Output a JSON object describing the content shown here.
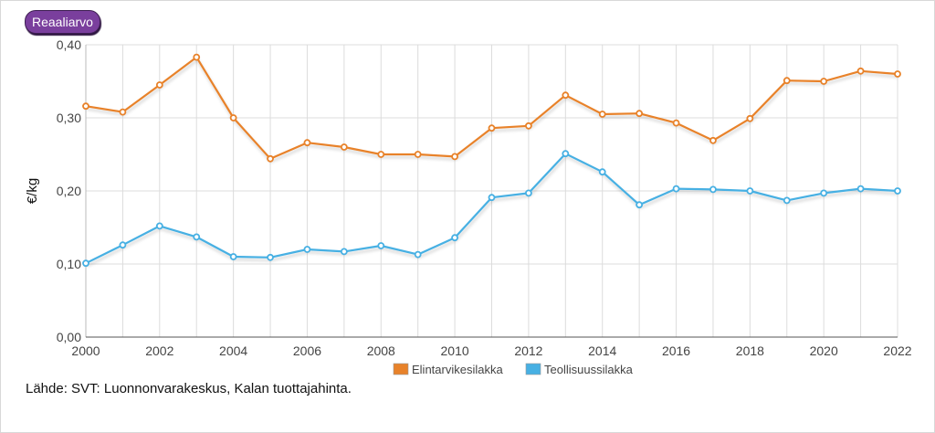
{
  "badge_label": "Reaaliarvo",
  "source_text": "Lähde: SVT: Luonnonvarakeskus, Kalan tuottajahinta.",
  "chart_data": {
    "type": "line",
    "ylabel": "€/kg",
    "xlabel": "",
    "title": "",
    "ylim": [
      0,
      0.4
    ],
    "y_ticks": [
      "0,00",
      "0,10",
      "0,20",
      "0,30",
      "0,40"
    ],
    "x_ticks": [
      "2000",
      "2002",
      "2004",
      "2006",
      "2008",
      "2010",
      "2012",
      "2014",
      "2016",
      "2018",
      "2020",
      "2022"
    ],
    "grid": true,
    "legend_position": "bottom",
    "x": [
      2000,
      2001,
      2002,
      2003,
      2004,
      2005,
      2006,
      2007,
      2008,
      2009,
      2010,
      2011,
      2012,
      2013,
      2014,
      2015,
      2016,
      2017,
      2018,
      2019,
      2020,
      2021,
      2022
    ],
    "series": [
      {
        "name": "Elintarvikesilakka",
        "color": "#e8822a",
        "values": [
          0.316,
          0.308,
          0.345,
          0.383,
          0.3,
          0.244,
          0.266,
          0.26,
          0.25,
          0.25,
          0.247,
          0.286,
          0.289,
          0.331,
          0.305,
          0.306,
          0.293,
          0.269,
          0.299,
          0.351,
          0.35,
          0.364,
          0.36
        ]
      },
      {
        "name": "Teollisuussilakka",
        "color": "#47b0e3",
        "values": [
          0.101,
          0.126,
          0.152,
          0.137,
          0.11,
          0.109,
          0.12,
          0.117,
          0.125,
          0.113,
          0.136,
          0.191,
          0.197,
          0.251,
          0.226,
          0.181,
          0.203,
          0.202,
          0.2,
          0.187,
          0.197,
          0.203,
          0.2
        ]
      }
    ]
  }
}
